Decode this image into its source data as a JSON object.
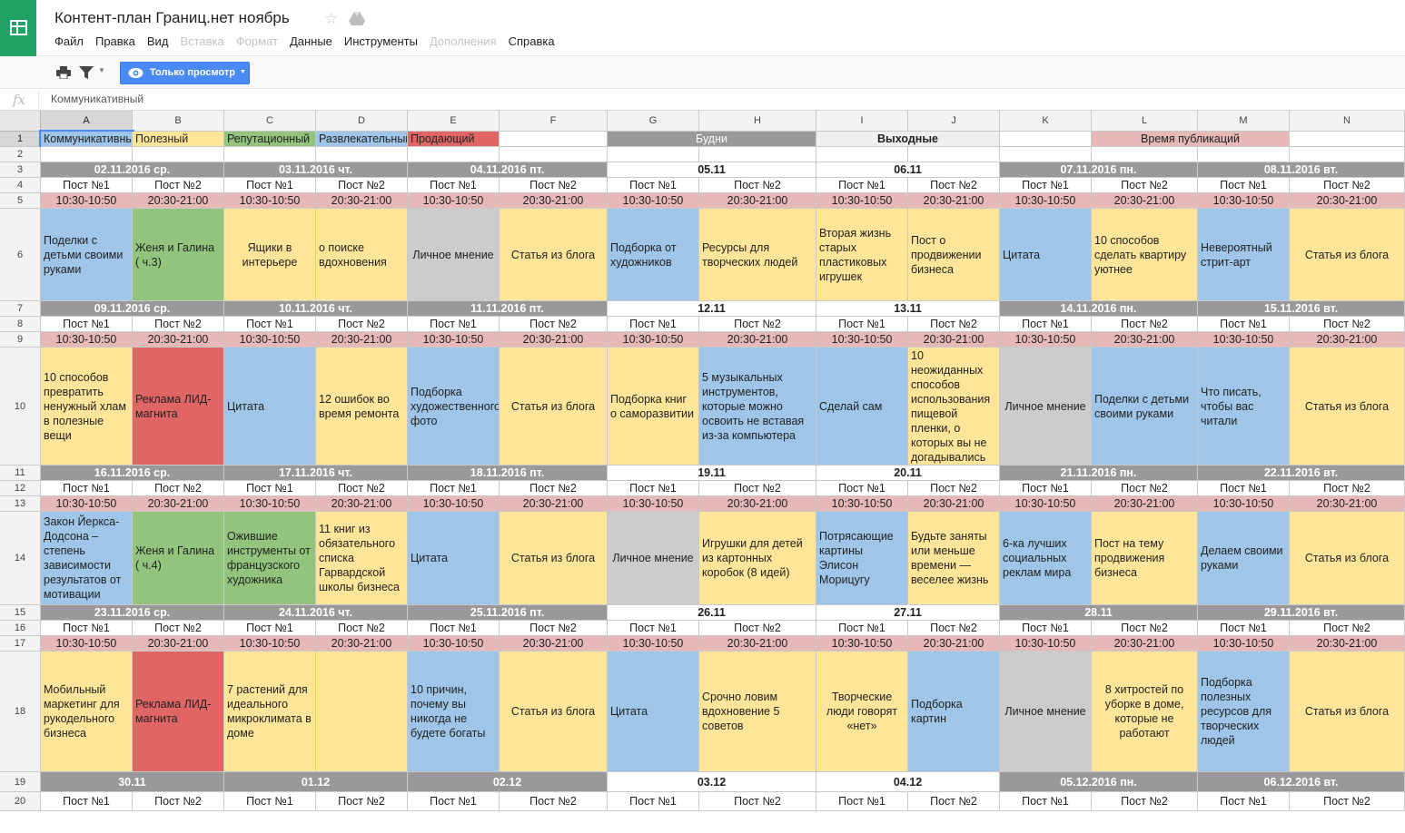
{
  "app": {
    "title": "Контент-план Границ.нет ноябрь",
    "menu": [
      {
        "label": "Файл",
        "enabled": true
      },
      {
        "label": "Правка",
        "enabled": true
      },
      {
        "label": "Вид",
        "enabled": true
      },
      {
        "label": "Вставка",
        "enabled": false
      },
      {
        "label": "Формат",
        "enabled": false
      },
      {
        "label": "Данные",
        "enabled": true
      },
      {
        "label": "Инструменты",
        "enabled": true
      },
      {
        "label": "Дополнения",
        "enabled": false
      },
      {
        "label": "Справка",
        "enabled": true
      }
    ],
    "view_only_label": "Только просмотр",
    "formula_value": "Коммуникативный",
    "icons": {
      "logo": "sheets-logo-icon",
      "star": "star-icon",
      "drive": "drive-icon",
      "print": "print-icon",
      "filter": "filter-icon",
      "eye": "eye-icon"
    }
  },
  "colors": {
    "blue": "#9fc5e8",
    "green": "#93c47d",
    "yellow": "#ffe599",
    "gray": "#cccccc",
    "red": "#e06666",
    "pink": "#e6b8b8",
    "darkgray": "#999999",
    "lightgray": "#efefef",
    "white": "#ffffff",
    "accent": "#4a8af4"
  },
  "grid": {
    "columns": [
      "A",
      "B",
      "C",
      "D",
      "E",
      "F",
      "G",
      "H",
      "I",
      "J",
      "K",
      "L",
      "M",
      "N"
    ],
    "selected_column": "A",
    "selected_row": "1",
    "rows": [
      {
        "num": "1",
        "kind": "legend",
        "cells": [
          {
            "text": "Коммуникативный",
            "bg": "blue",
            "span": 1
          },
          {
            "text": "Полезный",
            "bg": "yellow",
            "span": 1
          },
          {
            "text": "Репутационный",
            "bg": "green",
            "span": 1
          },
          {
            "text": "Развлекательный",
            "bg": "blue",
            "span": 1
          },
          {
            "text": "Продающий",
            "bg": "red",
            "span": 1
          },
          {
            "text": "",
            "bg": "white",
            "span": 1
          },
          {
            "text": "Будни",
            "bg": "darkgray",
            "span": 2,
            "light": true
          },
          {
            "text": "Выходные",
            "bg": "lightgray",
            "span": 2,
            "bold": true
          },
          {
            "text": "",
            "bg": "white",
            "span": 1
          },
          {
            "text": "Время публикаций",
            "bg": "pink",
            "span": 2
          },
          {
            "text": "",
            "bg": "white",
            "span": 1
          }
        ]
      },
      {
        "num": "2",
        "kind": "blank",
        "cells": []
      },
      {
        "num": "3",
        "kind": "date",
        "dates": [
          "02.11.2016 ср.",
          "03.11.2016 чт.",
          "04.11.2016 пт.",
          "05.11",
          "06.11",
          "07.11.2016 пн.",
          "08.11.2016 вт."
        ]
      },
      {
        "num": "4",
        "kind": "post"
      },
      {
        "num": "5",
        "kind": "time"
      },
      {
        "num": "6",
        "kind": "content",
        "cells": [
          {
            "text": "Поделки с детьми своими руками",
            "bg": "blue",
            "align": "l"
          },
          {
            "text": "Женя и Галина ( ч.3)",
            "bg": "green",
            "align": "l"
          },
          {
            "text": "Ящики в интерьере",
            "bg": "yellow",
            "align": "c"
          },
          {
            "text": "о поиске вдохновения",
            "bg": "yellow",
            "align": "l"
          },
          {
            "text": "Личное мнение",
            "bg": "gray",
            "align": "c"
          },
          {
            "text": "Статья из блога",
            "bg": "yellow",
            "align": "c"
          },
          {
            "text": "Подборка от художников",
            "bg": "blue",
            "align": "l"
          },
          {
            "text": "Ресурсы для творческих людей",
            "bg": "yellow",
            "align": "l"
          },
          {
            "text": "Вторая жизнь старых пластиковых игрушек",
            "bg": "yellow",
            "align": "l"
          },
          {
            "text": "Пост о продвижении бизнеса",
            "bg": "yellow",
            "align": "l"
          },
          {
            "text": "Цитата",
            "bg": "blue",
            "align": "l"
          },
          {
            "text": "10 способов сделать квартиру уютнее",
            "bg": "yellow",
            "align": "l"
          },
          {
            "text": "Невероятный стрит-арт",
            "bg": "blue",
            "align": "l"
          },
          {
            "text": "Статья из блога",
            "bg": "yellow",
            "align": "c"
          }
        ]
      },
      {
        "num": "7",
        "kind": "date",
        "dates": [
          "09.11.2016 ср.",
          "10.11.2016 чт.",
          "11.11.2016 пт.",
          "12.11",
          "13.11",
          "14.11.2016 пн.",
          "15.11.2016 вт."
        ]
      },
      {
        "num": "8",
        "kind": "post"
      },
      {
        "num": "9",
        "kind": "time"
      },
      {
        "num": "10",
        "kind": "content",
        "cells": [
          {
            "text": "10 способов превратить ненужный хлам в полезные вещи",
            "bg": "yellow",
            "align": "l"
          },
          {
            "text": "Реклама ЛИД-магнита",
            "bg": "red",
            "align": "l"
          },
          {
            "text": "Цитата",
            "bg": "blue",
            "align": "l"
          },
          {
            "text": "12 ошибок во время ремонта",
            "bg": "yellow",
            "align": "l"
          },
          {
            "text": "Подборка художественного фото",
            "bg": "blue",
            "align": "l"
          },
          {
            "text": "Статья из блога",
            "bg": "yellow",
            "align": "c"
          },
          {
            "text": "Подборка книг о саморазвитии",
            "bg": "yellow",
            "align": "l"
          },
          {
            "text": "5 музыкальных инструментов, которые можно освоить не вставая из-за компьютера",
            "bg": "blue",
            "align": "l"
          },
          {
            "text": "Сделай сам",
            "bg": "blue",
            "align": "l"
          },
          {
            "text": "10 неожиданных способов использования пищевой пленки, о которых вы не догадывались",
            "bg": "yellow",
            "align": "l"
          },
          {
            "text": "Личное мнение",
            "bg": "gray",
            "align": "c"
          },
          {
            "text": "Поделки с детьми своими руками",
            "bg": "blue",
            "align": "l"
          },
          {
            "text": "Что писать, чтобы вас читали",
            "bg": "blue",
            "align": "l"
          },
          {
            "text": "Статья из блога",
            "bg": "yellow",
            "align": "c"
          }
        ]
      },
      {
        "num": "11",
        "kind": "date",
        "dates": [
          "16.11.2016 ср.",
          "17.11.2016 чт.",
          "18.11.2016 пт.",
          "19.11",
          "20.11",
          "21.11.2016 пн.",
          "22.11.2016 вт."
        ]
      },
      {
        "num": "12",
        "kind": "post"
      },
      {
        "num": "13",
        "kind": "time"
      },
      {
        "num": "14",
        "kind": "content",
        "cells": [
          {
            "text": "Закон Йеркса-Додсона – степень зависимости результатов от мотивации",
            "bg": "blue",
            "align": "l"
          },
          {
            "text": "Женя и Галина ( ч.4)",
            "bg": "green",
            "align": "l"
          },
          {
            "text": "Ожившие инструменты от французского художника",
            "bg": "green",
            "align": "l"
          },
          {
            "text": "11 книг из обязательного списка Гарвардской школы бизнеса",
            "bg": "yellow",
            "align": "l"
          },
          {
            "text": "Цитата",
            "bg": "blue",
            "align": "l"
          },
          {
            "text": "Статья из блога",
            "bg": "yellow",
            "align": "c"
          },
          {
            "text": "Личное мнение",
            "bg": "gray",
            "align": "c"
          },
          {
            "text": "Игрушки для детей из картонных коробок (8 идей)",
            "bg": "yellow",
            "align": "l"
          },
          {
            "text": "Потрясающие картины Элисон Морицугу",
            "bg": "blue",
            "align": "l"
          },
          {
            "text": "Будьте заняты или меньше времени — веселее жизнь",
            "bg": "yellow",
            "align": "l"
          },
          {
            "text": "6-ка лучших социальных реклам мира",
            "bg": "blue",
            "align": "l"
          },
          {
            "text": "Пост на тему продвижения бизнеса",
            "bg": "yellow",
            "align": "l"
          },
          {
            "text": "Делаем своими руками",
            "bg": "blue",
            "align": "l"
          },
          {
            "text": "Статья из блога",
            "bg": "yellow",
            "align": "c"
          }
        ]
      },
      {
        "num": "15",
        "kind": "date",
        "dates": [
          "23.11.2016 ср.",
          "24.11.2016 чт.",
          "25.11.2016 пт.",
          "26.11",
          "27.11",
          "28.11",
          "29.11.2016 вт."
        ]
      },
      {
        "num": "16",
        "kind": "post"
      },
      {
        "num": "17",
        "kind": "time"
      },
      {
        "num": "18",
        "kind": "content",
        "cells": [
          {
            "text": "Мобильный маркетинг для рукодельного бизнеса",
            "bg": "yellow",
            "align": "l"
          },
          {
            "text": "Реклама ЛИД-магнита",
            "bg": "red",
            "align": "l"
          },
          {
            "text": " 7 растений для идеального микроклимата в доме",
            "bg": "yellow",
            "align": "l"
          },
          {
            "text": "",
            "bg": "yellow",
            "align": "l"
          },
          {
            "text": "10 причин, почему вы никогда не будете богаты",
            "bg": "blue",
            "align": "l"
          },
          {
            "text": "Статья из блога",
            "bg": "yellow",
            "align": "c"
          },
          {
            "text": "Цитата",
            "bg": "blue",
            "align": "l"
          },
          {
            "text": "Срочно ловим вдохновение 5 советов",
            "bg": "yellow",
            "align": "l"
          },
          {
            "text": "Творческие люди говорят «нет»",
            "bg": "yellow",
            "align": "c"
          },
          {
            "text": "Подборка картин",
            "bg": "blue",
            "align": "l"
          },
          {
            "text": "Личное мнение",
            "bg": "gray",
            "align": "c"
          },
          {
            "text": "8 хитростей по уборке в доме, которые не работают",
            "bg": "yellow",
            "align": "c"
          },
          {
            "text": "Подборка полезных ресурсов для творческих людей",
            "bg": "blue",
            "align": "l"
          },
          {
            "text": "Статья из блога",
            "bg": "yellow",
            "align": "c"
          }
        ]
      },
      {
        "num": "19",
        "kind": "date",
        "dates": [
          "30.11",
          "01.12",
          "02.12",
          "03.12",
          "04.12",
          "05.12.2016 пн.",
          "06.12.2016 вт."
        ]
      },
      {
        "num": "20",
        "kind": "post"
      }
    ],
    "post_labels": [
      "Пост №1",
      "Пост №2"
    ],
    "time_labels": [
      "10:30-10:50",
      "20:30-21:00"
    ]
  }
}
